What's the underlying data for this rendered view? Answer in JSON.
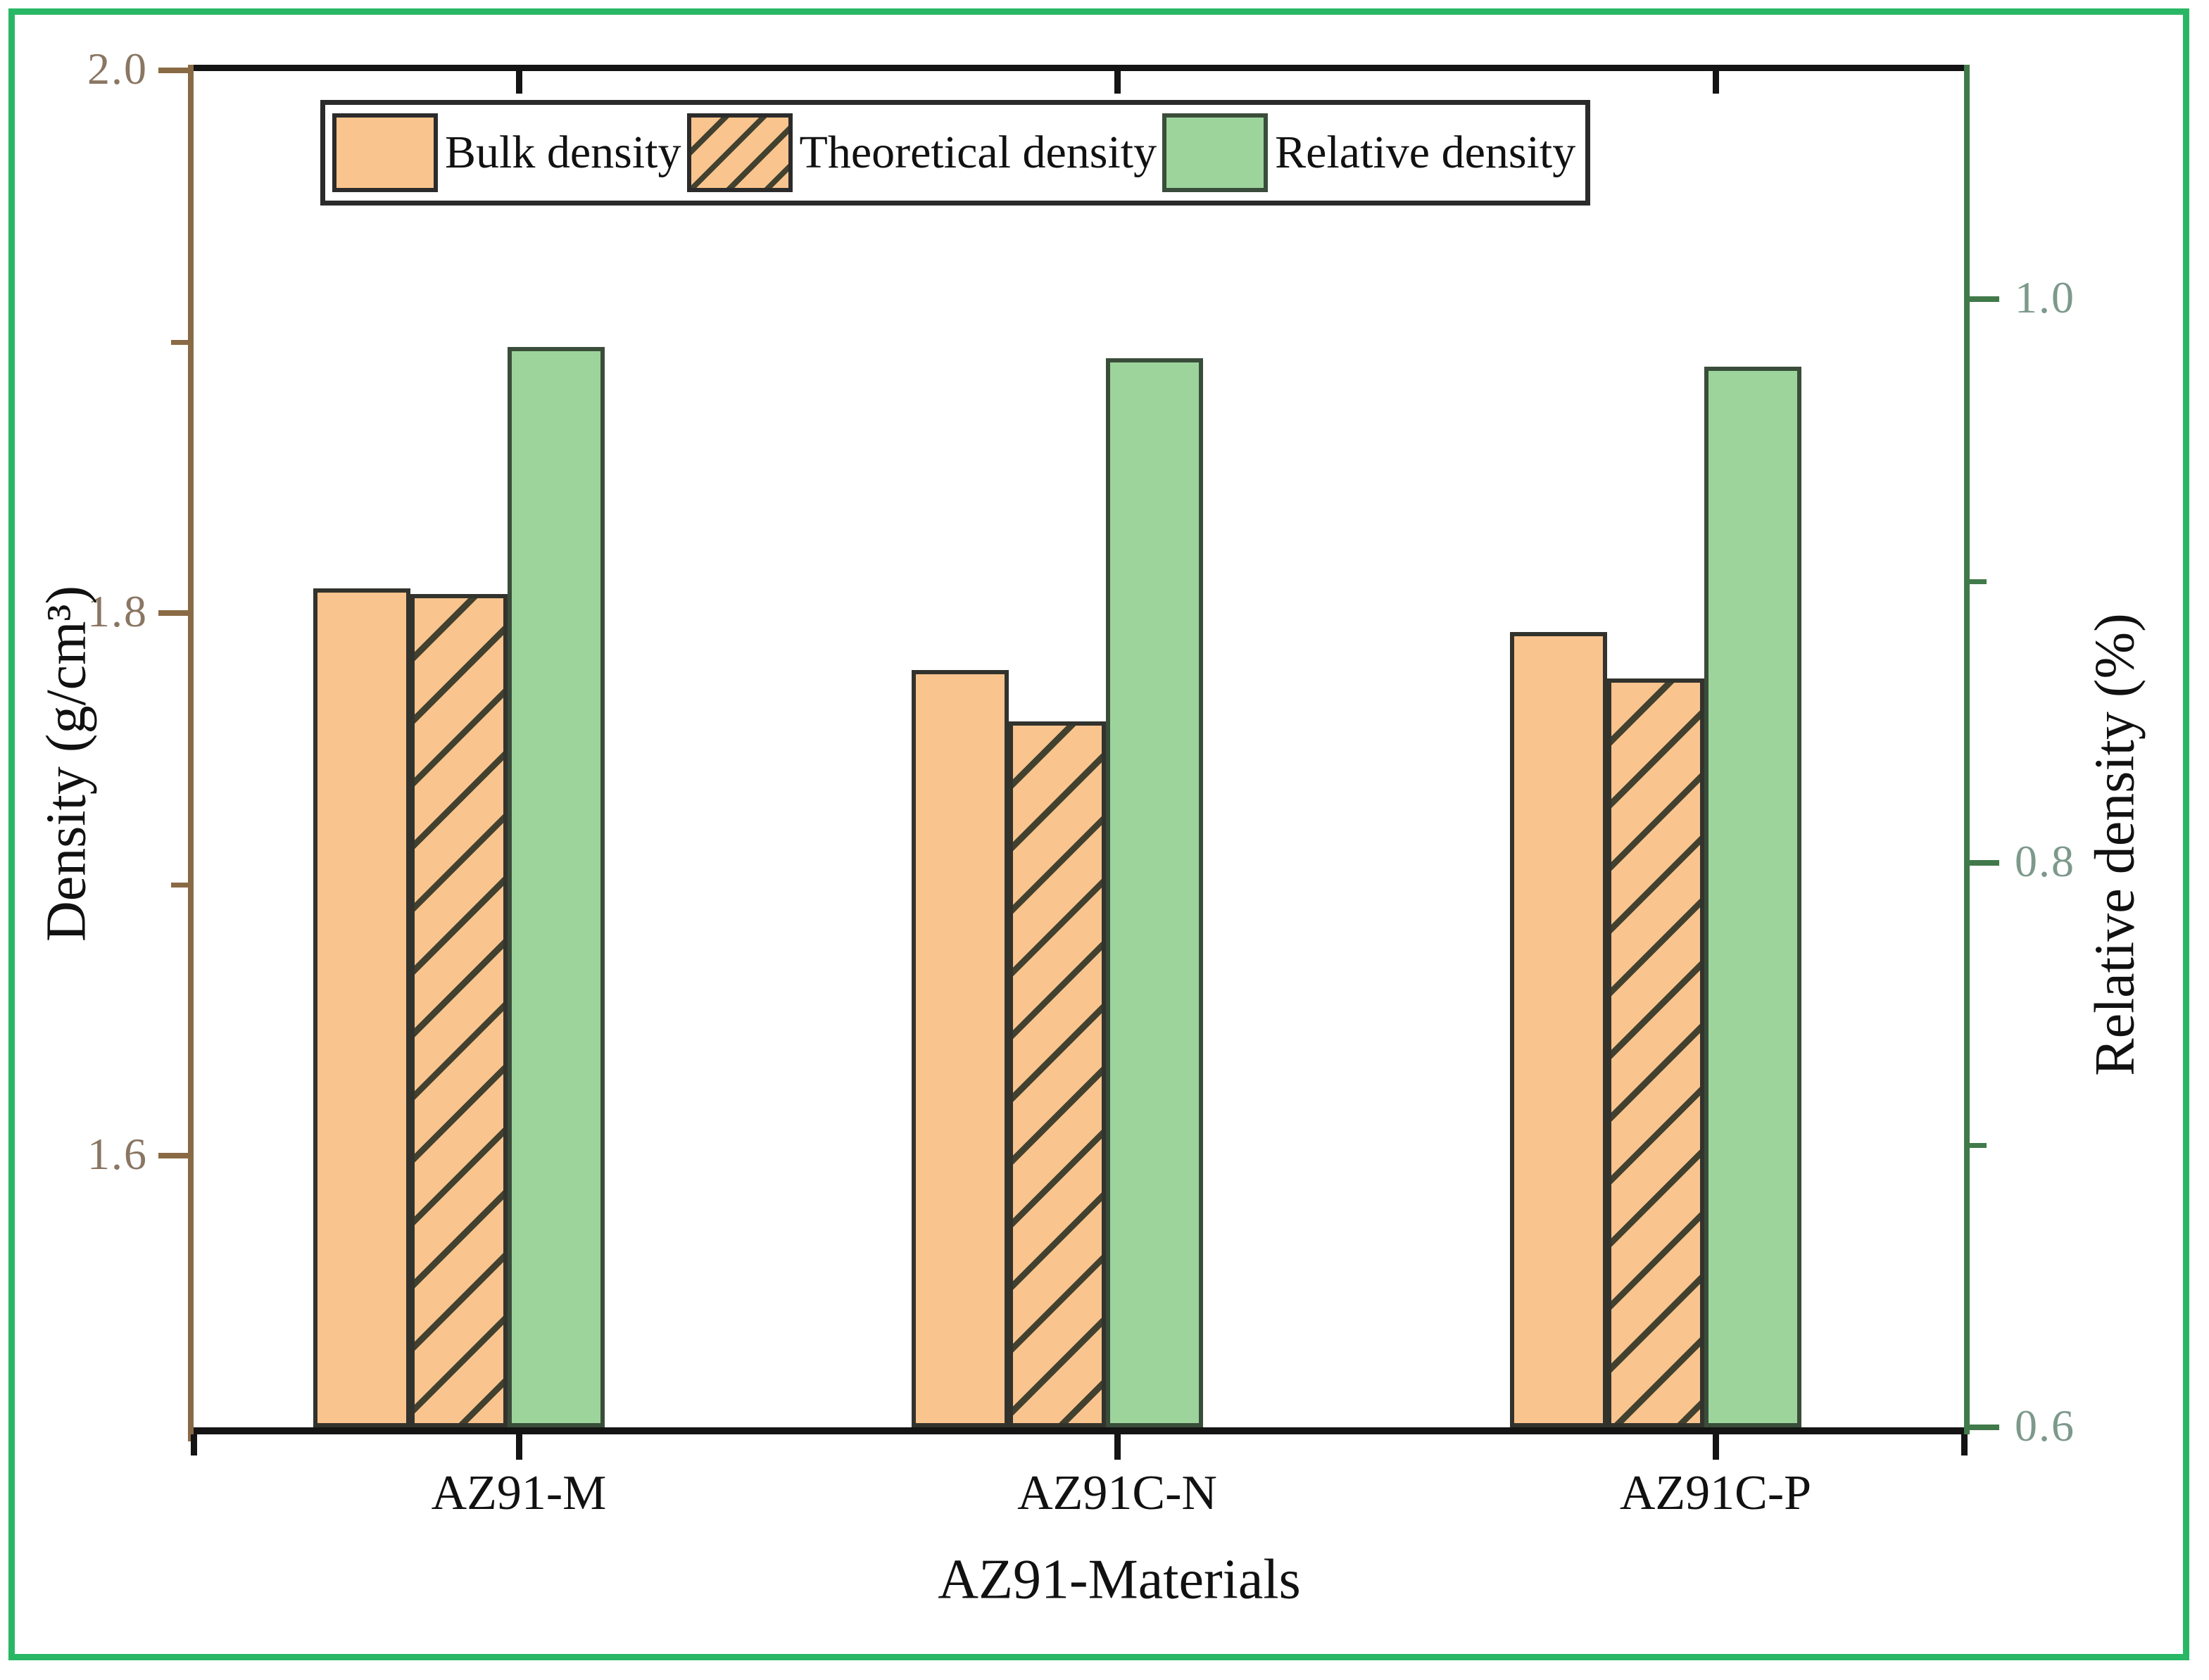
{
  "figure": {
    "frame_color": "#29b765",
    "background": "#ffffff"
  },
  "colors": {
    "bar_orange": "#f9c48e",
    "bar_green": "#9cd49c",
    "bar_border": "#33332e",
    "bar_border_green": "#3a4d3a",
    "hatch_line": "#42412f",
    "left_axis": "#8a6a45",
    "left_tick_label": "#8a7663",
    "right_axis": "#417a4a",
    "right_tick_label": "#7d998c",
    "top_bottom_axis": "#141414",
    "legend_border": "#2b2b2b"
  },
  "legend": {
    "items": [
      {
        "label": "Bulk density",
        "swatch": "solid-orange",
        "icon": "solid-orange-swatch"
      },
      {
        "label": "Theoretical density",
        "swatch": "hatched-orange",
        "icon": "hatched-orange-swatch"
      },
      {
        "label": "Relative density",
        "swatch": "solid-green",
        "icon": "solid-green-swatch"
      }
    ]
  },
  "chart_data": {
    "type": "bar",
    "title": "",
    "categories": [
      "AZ91-M",
      "AZ91C-N",
      "AZ91C-P"
    ],
    "xlabel": "AZ91-Materials",
    "grid": false,
    "legend_position": "top-inside",
    "left_axis": {
      "label": "Density (g/cm³)",
      "lim": [
        1.5,
        2.0
      ],
      "major_ticks": [
        2.0,
        1.8,
        1.6
      ],
      "major_tick_labels": [
        "2.0",
        "1.8",
        "1.6"
      ],
      "minor_ticks": [
        1.9,
        1.7
      ]
    },
    "right_axis": {
      "label": "Relative density (%)",
      "lim": [
        0.6,
        1.081
      ],
      "major_ticks": [
        1.0,
        0.8,
        0.6
      ],
      "major_tick_labels": [
        "1.0",
        "0.8",
        "0.6"
      ],
      "minor_ticks": [
        0.9,
        0.7
      ]
    },
    "series": [
      {
        "name": "Bulk density",
        "axis": "left",
        "style": "solid-orange",
        "values": [
          1.809,
          1.779,
          1.793
        ]
      },
      {
        "name": "Theoretical density",
        "axis": "left",
        "style": "hatched-orange",
        "values": [
          1.807,
          1.76,
          1.776
        ]
      },
      {
        "name": "Relative density",
        "axis": "right",
        "style": "solid-green",
        "values": [
          0.983,
          0.979,
          0.976
        ]
      }
    ]
  }
}
